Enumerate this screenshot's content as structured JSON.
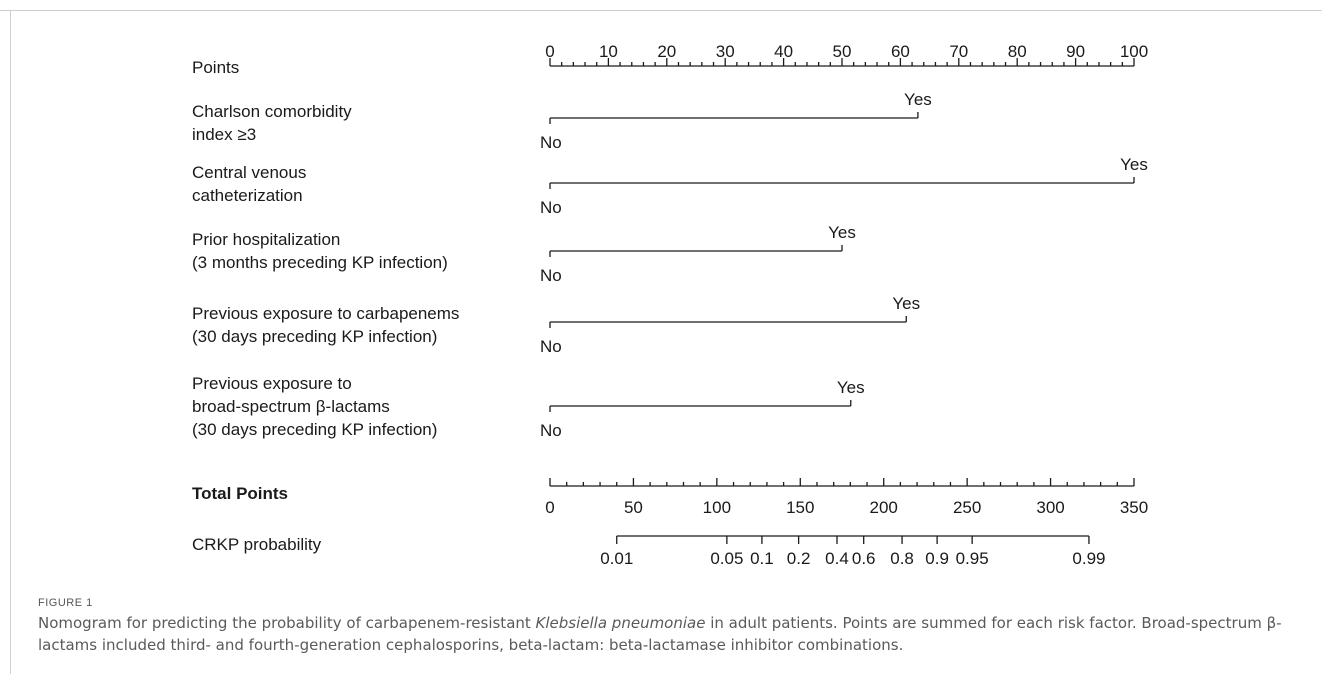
{
  "chart_data": {
    "type": "nomogram",
    "points_axis": {
      "label": "Points",
      "range": [
        0,
        100
      ],
      "major_ticks": [
        0,
        10,
        20,
        30,
        40,
        50,
        60,
        70,
        80,
        90,
        100
      ],
      "minor_step": 2
    },
    "variables": [
      {
        "label_lines": [
          "Charlson comorbidity",
          "index ≥3"
        ],
        "no_label": "No",
        "yes_label": "Yes",
        "no_points": 0,
        "yes_points": 63
      },
      {
        "label_lines": [
          "Central venous",
          "catheterization"
        ],
        "no_label": "No",
        "yes_label": "Yes",
        "no_points": 0,
        "yes_points": 100
      },
      {
        "label_lines": [
          "Prior hospitalization",
          "(3 months preceding KP infection)"
        ],
        "no_label": "No",
        "yes_label": "Yes",
        "no_points": 0,
        "yes_points": 50
      },
      {
        "label_lines": [
          "Previous exposure to carbapenems",
          "(30 days preceding KP infection)"
        ],
        "no_label": "No",
        "yes_label": "Yes",
        "no_points": 0,
        "yes_points": 61
      },
      {
        "label_lines": [
          "Previous exposure to",
          "broad-spectrum β-lactams",
          "(30 days preceding KP infection)"
        ],
        "no_label": "No",
        "yes_label": "Yes",
        "no_points": 0,
        "yes_points": 51.5
      }
    ],
    "total_points_axis": {
      "label": "Total Points",
      "range": [
        0,
        350
      ],
      "major_ticks": [
        0,
        50,
        100,
        150,
        200,
        250,
        300,
        350
      ],
      "minor_step": 10
    },
    "probability_axis": {
      "label": "CRKP probability",
      "ticks": [
        {
          "label": "0.01",
          "total_points": 40
        },
        {
          "label": "0.05",
          "total_points": 106
        },
        {
          "label": "0.1",
          "total_points": 127
        },
        {
          "label": "0.2",
          "total_points": 149
        },
        {
          "label": "0.4",
          "total_points": 172
        },
        {
          "label": "0.6",
          "total_points": 188
        },
        {
          "label": "0.8",
          "total_points": 211
        },
        {
          "label": "0.9",
          "total_points": 232
        },
        {
          "label": "0.95",
          "total_points": 253
        },
        {
          "label": "0.99",
          "total_points": 323
        }
      ]
    }
  },
  "caption": {
    "figure_label": "FIGURE 1",
    "text_before": "Nomogram for predicting the probability of carbapenem-resistant ",
    "text_italic": "Klebsiella pneumoniae",
    "text_after": " in adult patients. Points are summed for each risk factor. Broad-spectrum β-lactams included third- and fourth-generation cephalosporins, beta-lactam: beta-lactamase inhibitor combinations."
  }
}
